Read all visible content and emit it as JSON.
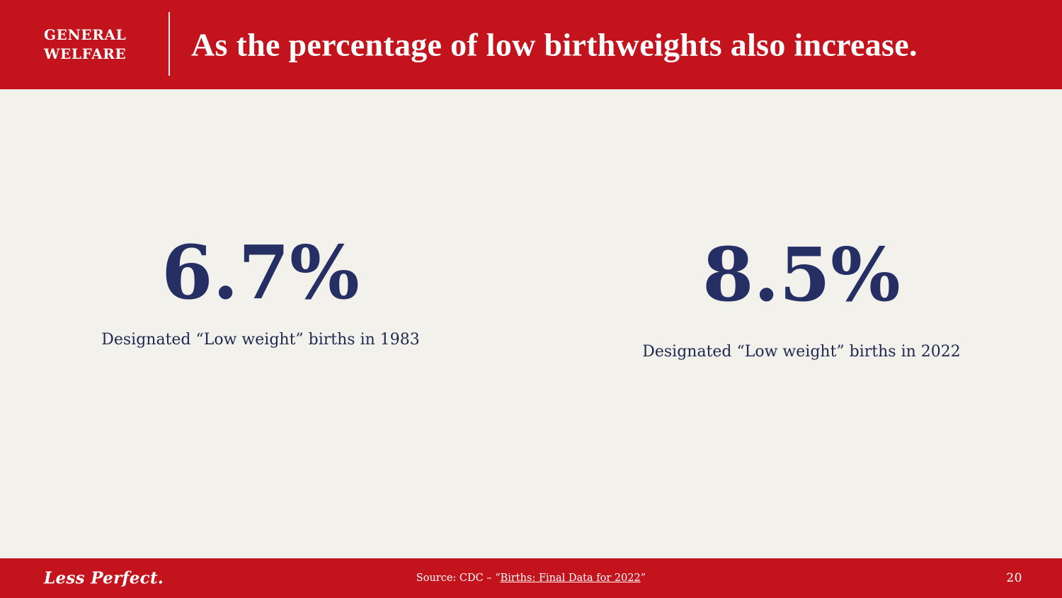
{
  "header": {
    "kicker_line1": "GENERAL",
    "kicker_line2": "WELFARE",
    "title": "As the percentage of low birthweights also increase."
  },
  "stats": [
    {
      "value": "6.7%",
      "caption": "Designated “Low weight” births in 1983"
    },
    {
      "value": "8.5%",
      "caption": "Designated “Low weight” births in 2022"
    }
  ],
  "footer": {
    "brand": "Less Perfect.",
    "source_prefix": "Source: CDC – “",
    "source_link": "Births: Final Data for 2022",
    "source_suffix": "”",
    "page_number": "20"
  },
  "colors": {
    "accent_red": "#C3131C",
    "navy": "#252F64",
    "background_cream": "#F2F1EC"
  }
}
